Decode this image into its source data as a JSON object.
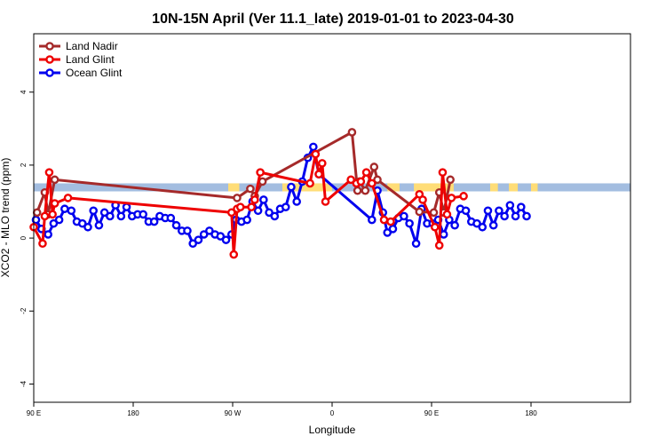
{
  "chart_data": {
    "type": "line",
    "title": "10N-15N April (Ver 11.1_late)   2019-01-01 to 2023-04-30",
    "xlabel": "Longitude",
    "ylabel": "XCO2 - MLO trend (ppm)",
    "xlim": [
      0,
      540
    ],
    "ylim": [
      -4.5,
      5.6
    ],
    "x_ticks": [
      {
        "x": 0,
        "label": "90 E"
      },
      {
        "x": 90,
        "label": "180"
      },
      {
        "x": 180,
        "label": "90 W"
      },
      {
        "x": 270,
        "label": "0"
      },
      {
        "x": 360,
        "label": "90 E"
      },
      {
        "x": 450,
        "label": "180"
      }
    ],
    "y_ticks": [
      -4,
      -2,
      0,
      2,
      4
    ],
    "legend_position": "top-left",
    "land_band": {
      "ymin": 1.28,
      "ymax": 1.5,
      "color": "#a3bde0",
      "land_color": "#ffdd77",
      "land_segments": [
        [
          176,
          186
        ],
        [
          225,
          270
        ],
        [
          320,
          331
        ],
        [
          344,
          380
        ],
        [
          413,
          420
        ],
        [
          430,
          438
        ],
        [
          450,
          456
        ]
      ]
    },
    "series": [
      {
        "name": "Land Nadir",
        "color": "#a52a2a",
        "points": [
          [
            3,
            0.7
          ],
          [
            10,
            1.25
          ],
          [
            13,
            0.65
          ],
          [
            19,
            1.6
          ],
          [
            184,
            1.1
          ],
          [
            196,
            1.35
          ],
          [
            200,
            1.15
          ],
          [
            207,
            1.55
          ],
          [
            288,
            2.9
          ],
          [
            293,
            1.3
          ],
          [
            295,
            1.55
          ],
          [
            300,
            1.3
          ],
          [
            308,
            1.95
          ],
          [
            311,
            1.6
          ],
          [
            349,
            0.72
          ],
          [
            362,
            0.7
          ],
          [
            367,
            1.25
          ],
          [
            371,
            0.7
          ],
          [
            377,
            1.6
          ]
        ]
      },
      {
        "name": "Land Glint",
        "color": "#ee0000",
        "points": [
          [
            0,
            0.3
          ],
          [
            8,
            -0.15
          ],
          [
            10,
            0.6
          ],
          [
            14,
            1.8
          ],
          [
            17,
            0.65
          ],
          [
            19,
            0.95
          ],
          [
            31,
            1.1
          ],
          [
            179,
            0.7
          ],
          [
            181,
            -0.45
          ],
          [
            184,
            0.8
          ],
          [
            187,
            0.85
          ],
          [
            197,
            0.85
          ],
          [
            200,
            1.05
          ],
          [
            205,
            1.8
          ],
          [
            250,
            1.5
          ],
          [
            255,
            2.3
          ],
          [
            258,
            1.75
          ],
          [
            261,
            2.05
          ],
          [
            264,
            1.0
          ],
          [
            287,
            1.6
          ],
          [
            292,
            1.5
          ],
          [
            296,
            1.55
          ],
          [
            301,
            1.8
          ],
          [
            306,
            1.5
          ],
          [
            317,
            0.5
          ],
          [
            323,
            0.45
          ],
          [
            349,
            1.2
          ],
          [
            352,
            1.05
          ],
          [
            363,
            0.3
          ],
          [
            367,
            -0.2
          ],
          [
            370,
            1.8
          ],
          [
            374,
            0.65
          ],
          [
            378,
            1.1
          ],
          [
            389,
            1.15
          ]
        ]
      },
      {
        "name": "Ocean Glint",
        "color": "#0000ee",
        "points": [
          [
            2,
            0.5
          ],
          [
            7,
            0.25
          ],
          [
            13,
            0.1
          ],
          [
            18,
            0.4
          ],
          [
            23,
            0.5
          ],
          [
            28,
            0.8
          ],
          [
            34,
            0.75
          ],
          [
            39,
            0.45
          ],
          [
            44,
            0.4
          ],
          [
            49,
            0.3
          ],
          [
            54,
            0.75
          ],
          [
            59,
            0.35
          ],
          [
            64,
            0.7
          ],
          [
            69,
            0.6
          ],
          [
            74,
            0.9
          ],
          [
            79,
            0.6
          ],
          [
            84,
            0.85
          ],
          [
            89,
            0.6
          ],
          [
            94,
            0.65
          ],
          [
            99,
            0.65
          ],
          [
            104,
            0.45
          ],
          [
            109,
            0.45
          ],
          [
            114,
            0.6
          ],
          [
            119,
            0.55
          ],
          [
            124,
            0.55
          ],
          [
            129,
            0.35
          ],
          [
            134,
            0.2
          ],
          [
            139,
            0.2
          ],
          [
            144,
            -0.15
          ],
          [
            149,
            -0.05
          ],
          [
            154,
            0.1
          ],
          [
            159,
            0.2
          ],
          [
            164,
            0.1
          ],
          [
            169,
            0.05
          ],
          [
            174,
            -0.05
          ],
          [
            179,
            0.1
          ],
          [
            183,
            0.5
          ],
          [
            188,
            0.45
          ],
          [
            193,
            0.5
          ],
          [
            198,
            1.0
          ],
          [
            203,
            0.75
          ],
          [
            208,
            1.05
          ],
          [
            213,
            0.7
          ],
          [
            218,
            0.6
          ],
          [
            223,
            0.8
          ],
          [
            228,
            0.85
          ],
          [
            233,
            1.4
          ],
          [
            238,
            1.0
          ],
          [
            243,
            1.55
          ],
          [
            248,
            2.2
          ],
          [
            253,
            2.5
          ],
          [
            258,
            1.75
          ],
          [
            306,
            0.5
          ],
          [
            311,
            1.3
          ],
          [
            316,
            0.7
          ],
          [
            320,
            0.15
          ],
          [
            325,
            0.25
          ],
          [
            330,
            0.55
          ],
          [
            335,
            0.6
          ],
          [
            340,
            0.4
          ],
          [
            346,
            -0.15
          ],
          [
            351,
            0.8
          ],
          [
            356,
            0.4
          ],
          [
            361,
            0.4
          ],
          [
            366,
            0.5
          ],
          [
            371,
            0.1
          ],
          [
            376,
            0.5
          ],
          [
            381,
            0.35
          ],
          [
            386,
            0.8
          ],
          [
            391,
            0.75
          ],
          [
            396,
            0.45
          ],
          [
            401,
            0.4
          ],
          [
            406,
            0.3
          ],
          [
            411,
            0.75
          ],
          [
            416,
            0.35
          ],
          [
            421,
            0.75
          ],
          [
            426,
            0.6
          ],
          [
            431,
            0.9
          ],
          [
            436,
            0.6
          ],
          [
            441,
            0.85
          ],
          [
            446,
            0.6
          ]
        ]
      }
    ]
  }
}
